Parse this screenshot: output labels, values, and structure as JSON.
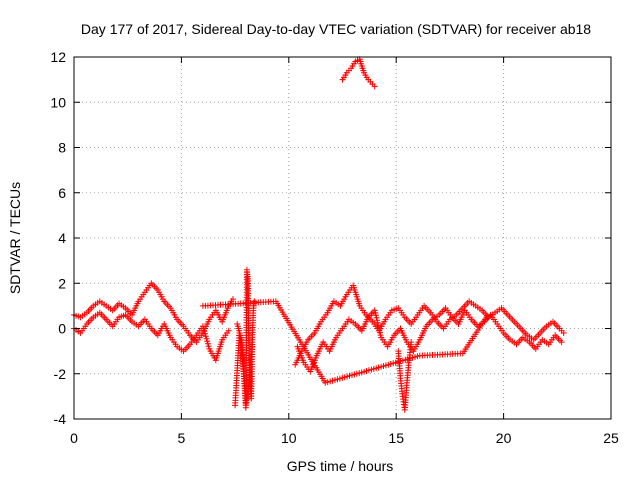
{
  "chart_data": {
    "type": "scatter",
    "title": "Day 177 of 2017, Sidereal Day-to-day VTEC variation (SDTVAR) for receiver ab18",
    "xlabel": "GPS time / hours",
    "ylabel": "SDTVAR / TECUs",
    "xlim": [
      0,
      25
    ],
    "ylim": [
      -4,
      12
    ],
    "xticks": [
      0,
      5,
      10,
      15,
      20,
      25
    ],
    "yticks": [
      -4,
      -2,
      0,
      2,
      4,
      6,
      8,
      10,
      12
    ],
    "grid": true,
    "marker": "+",
    "color": "#ff0000",
    "series": [
      {
        "name": "SDTVAR",
        "segments": [
          {
            "x": [
              0.0,
              0.3,
              0.6,
              0.9,
              1.2,
              1.5,
              1.8,
              2.1,
              2.4,
              2.7,
              3.0,
              3.3,
              3.6,
              3.9,
              4.2,
              4.5,
              4.8,
              5.1,
              5.4,
              5.7,
              6.0,
              6.3,
              6.6,
              6.9,
              7.2,
              7.4
            ],
            "y": [
              0.6,
              0.5,
              0.7,
              1.0,
              1.2,
              1.0,
              0.8,
              1.1,
              0.9,
              0.6,
              1.2,
              1.6,
              2.0,
              1.7,
              1.2,
              0.9,
              0.4,
              0.1,
              -0.3,
              -0.6,
              -0.2,
              0.4,
              0.8,
              0.3,
              1.0,
              1.3
            ]
          },
          {
            "x": [
              0.0,
              0.3,
              0.6,
              0.9,
              1.2,
              1.5,
              1.8,
              2.1,
              2.4,
              2.7,
              3.0,
              3.3,
              3.6,
              3.9,
              4.2,
              4.5,
              4.8,
              5.1,
              5.4,
              5.7,
              6.0,
              6.3,
              6.6,
              6.9,
              7.2
            ],
            "y": [
              0.0,
              -0.2,
              0.2,
              0.5,
              0.7,
              0.4,
              0.1,
              0.5,
              0.6,
              0.3,
              0.1,
              0.4,
              0.0,
              -0.3,
              0.2,
              -0.4,
              -0.8,
              -1.0,
              -0.7,
              -0.3,
              0.1,
              -0.9,
              -1.4,
              -0.5,
              -0.1
            ]
          },
          {
            "x": [
              7.6,
              7.8,
              7.9,
              8.0,
              8.05,
              8.1,
              8.15,
              8.2,
              8.25,
              8.3,
              8.35,
              8.4
            ],
            "y": [
              0.2,
              -0.5,
              -1.8,
              -3.3,
              2.6,
              2.1,
              -1.2,
              -2.4,
              -3.1,
              -0.6,
              0.9,
              1.2
            ]
          },
          {
            "x": [
              7.5,
              7.7,
              7.9,
              8.0,
              8.1,
              8.2,
              8.3
            ],
            "y": [
              -3.4,
              -0.2,
              -2.0,
              -3.5,
              -2.8,
              -1.6,
              -0.8
            ]
          },
          {
            "x": [
              10.3,
              10.6,
              10.9,
              11.2,
              11.5,
              11.8,
              12.1,
              12.4,
              12.7,
              13.0,
              13.3,
              13.6,
              13.9,
              14.2,
              14.5,
              14.8,
              15.1,
              15.4,
              15.7,
              16.0,
              16.3,
              16.6,
              16.9,
              17.2,
              17.5,
              17.8,
              18.1,
              18.4,
              18.7,
              19.0,
              19.3,
              19.6,
              19.9,
              20.2,
              20.5,
              20.8,
              21.1,
              21.4,
              21.7,
              22.0,
              22.3,
              22.6,
              22.8
            ],
            "y": [
              -1.6,
              -1.0,
              -0.5,
              -0.2,
              0.3,
              0.7,
              1.2,
              1.0,
              1.5,
              1.9,
              1.0,
              0.6,
              0.3,
              -0.1,
              0.4,
              0.8,
              0.9,
              0.5,
              0.2,
              0.6,
              1.0,
              0.7,
              0.3,
              0.0,
              0.4,
              0.6,
              0.9,
              1.2,
              1.0,
              0.8,
              0.5,
              0.7,
              0.9,
              0.6,
              0.3,
              0.0,
              -0.3,
              -0.5,
              -0.2,
              0.1,
              0.3,
              0.0,
              -0.2
            ]
          },
          {
            "x": [
              10.4,
              10.7,
              11.0,
              11.3,
              11.6,
              11.9,
              12.2,
              12.5,
              12.8,
              13.1,
              13.4,
              13.7,
              14.0,
              14.3,
              14.6,
              14.9,
              15.2,
              15.5,
              15.8,
              16.1,
              16.4,
              16.7,
              17.0,
              17.3,
              17.6,
              17.9,
              18.2,
              18.5,
              18.8,
              19.1,
              19.4,
              19.7,
              20.0,
              20.3,
              20.6,
              20.9,
              21.2,
              21.5,
              21.8,
              22.1,
              22.4,
              22.7
            ],
            "y": [
              -0.8,
              -1.5,
              -1.9,
              -1.2,
              -0.6,
              -1.0,
              -0.4,
              0.0,
              0.4,
              0.2,
              -0.1,
              0.5,
              0.8,
              -0.4,
              -0.8,
              -0.3,
              0.0,
              -0.6,
              -1.0,
              -0.5,
              0.1,
              0.4,
              0.6,
              0.9,
              0.5,
              0.2,
              0.8,
              0.4,
              0.1,
              0.3,
              0.6,
              0.2,
              -0.2,
              -0.5,
              -0.7,
              -0.4,
              -0.6,
              -0.9,
              -0.5,
              -0.7,
              -0.3,
              -0.6
            ]
          },
          {
            "x": [
              15.1,
              15.2,
              15.3,
              15.4,
              15.5,
              15.6,
              15.7
            ],
            "y": [
              -1.0,
              -2.2,
              -3.0,
              -3.6,
              -2.4,
              -1.4,
              -0.6
            ]
          },
          {
            "x": [
              12.5,
              12.7,
              12.9,
              13.1,
              13.3,
              13.5,
              13.7,
              13.9,
              14.0
            ],
            "y": [
              11.0,
              11.3,
              11.5,
              11.8,
              11.9,
              11.3,
              11.0,
              10.8,
              10.7
            ]
          },
          {
            "x": [
              6.0,
              9.4,
              11.7,
              16.1,
              18.1,
              19.2
            ],
            "y": [
              1.0,
              1.2,
              -2.4,
              -1.2,
              -1.1,
              0.5
            ]
          }
        ]
      }
    ]
  }
}
